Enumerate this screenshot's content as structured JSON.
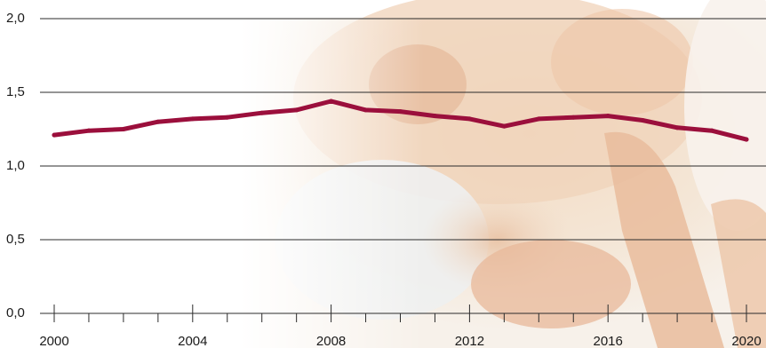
{
  "chart_data": {
    "type": "line",
    "title": "",
    "xlabel": "",
    "ylabel": "",
    "xlim": [
      2000,
      2020
    ],
    "ylim": [
      0,
      2
    ],
    "grid": true,
    "y_ticks": [
      "0,0",
      "0,5",
      "1,0",
      "1,5",
      "2,0"
    ],
    "y_tick_values": [
      0,
      0.5,
      1.0,
      1.5,
      2.0
    ],
    "x_ticks": [
      "2000",
      "2004",
      "2008",
      "2012",
      "2016",
      "2020"
    ],
    "x_tick_values": [
      2000,
      2004,
      2008,
      2012,
      2016,
      2020
    ],
    "x_minor_ticks": [
      2001,
      2002,
      2003,
      2005,
      2006,
      2007,
      2009,
      2010,
      2011,
      2013,
      2014,
      2015,
      2017,
      2018,
      2019
    ],
    "series": [
      {
        "color": "#9b0f3c",
        "x": [
          2000,
          2001,
          2002,
          2003,
          2004,
          2005,
          2006,
          2007,
          2008,
          2009,
          2010,
          2011,
          2012,
          2013,
          2014,
          2015,
          2016,
          2017,
          2018,
          2019,
          2020
        ],
        "values": [
          1.21,
          1.24,
          1.25,
          1.3,
          1.32,
          1.33,
          1.36,
          1.38,
          1.44,
          1.38,
          1.37,
          1.34,
          1.32,
          1.27,
          1.32,
          1.33,
          1.34,
          1.31,
          1.26,
          1.24,
          1.18
        ]
      }
    ],
    "background": "photo of baby hand holding adult finger (faded, right side)"
  }
}
